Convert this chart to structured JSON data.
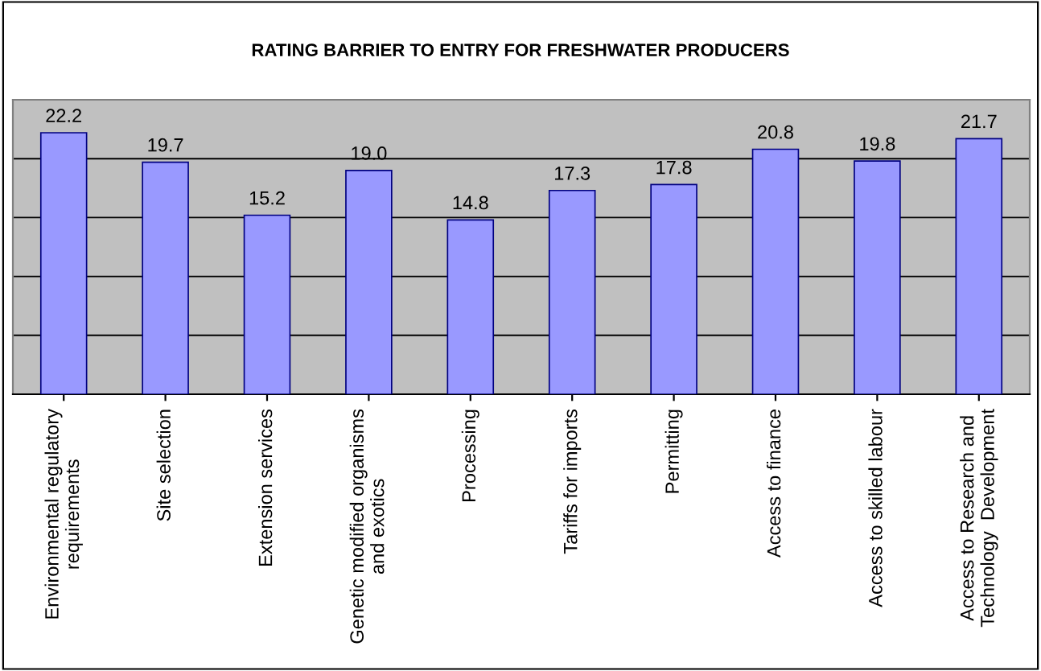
{
  "chart_data": {
    "type": "bar",
    "title": "RATING BARRIER TO ENTRY FOR FRESHWATER PRODUCERS",
    "categories": [
      "Environmental regulatory\nrequirements",
      "Site selection",
      "Extension services",
      "Genetic modified organisms\nand exotics",
      "Processing",
      "Tariffs for imports",
      "Permitting",
      "Access to finance",
      "Access to skilled labour",
      "Access to Research and\nTechnology  Development"
    ],
    "values": [
      22.2,
      19.7,
      15.2,
      19.0,
      14.8,
      17.3,
      17.8,
      20.8,
      19.8,
      21.7
    ],
    "color": "#9999ff",
    "ylim": [
      0,
      25
    ],
    "yticks": [
      {
        "value": 0,
        "label": null
      },
      {
        "value": 5,
        "label": null
      },
      {
        "value": 10,
        "label": null
      },
      {
        "value": 15,
        "label": null
      },
      {
        "value": 20,
        "label": null
      },
      {
        "value": 25,
        "label": null
      }
    ],
    "value_labels": [
      "22.2",
      "19.7",
      "15.2",
      "19.0",
      "14.8",
      "17.3",
      "17.8",
      "20.8",
      "19.8",
      "21.7"
    ],
    "grid": "y",
    "tick_labels": "x"
  }
}
